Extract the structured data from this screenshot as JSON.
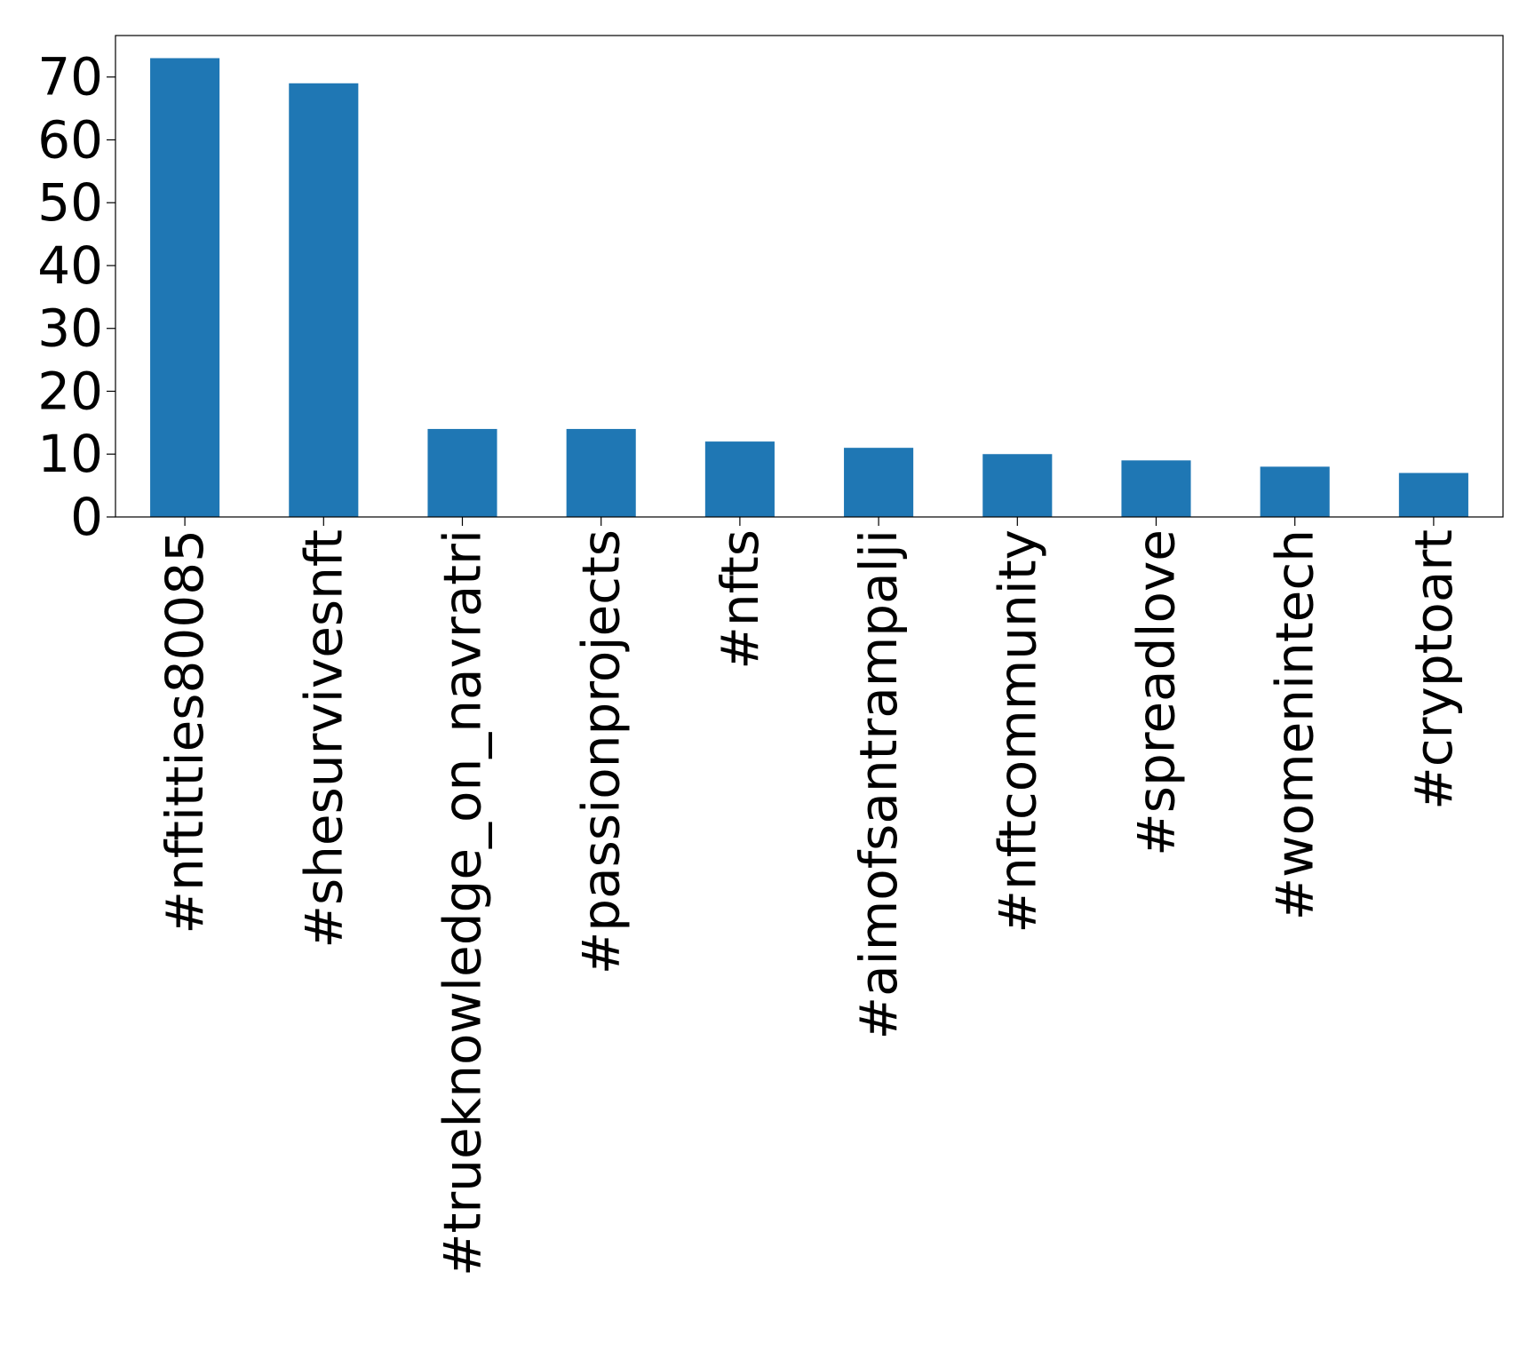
{
  "chart_data": {
    "type": "bar",
    "title": "",
    "xlabel": "",
    "ylabel": "",
    "categories": [
      "#nftitties80085",
      "#shesurvivesnft",
      "#trueknowledge_on_navratri",
      "#passionprojects",
      "#nfts",
      "#aimofsantrampalji",
      "#nftcommunity",
      "#spreadlove",
      "#womenintech",
      "#cryptoart"
    ],
    "values": [
      73,
      69,
      14,
      14,
      12,
      11,
      10,
      9,
      8,
      7
    ],
    "ylim": [
      0,
      76.6
    ],
    "yticks": [
      0,
      10,
      20,
      30,
      40,
      50,
      60,
      70
    ],
    "ytick_labels": [
      "0",
      "10",
      "20",
      "30",
      "40",
      "50",
      "60",
      "70"
    ],
    "grid": false,
    "legend": "none",
    "bar_color": "#1f77b4",
    "axis_color": "#000000"
  }
}
